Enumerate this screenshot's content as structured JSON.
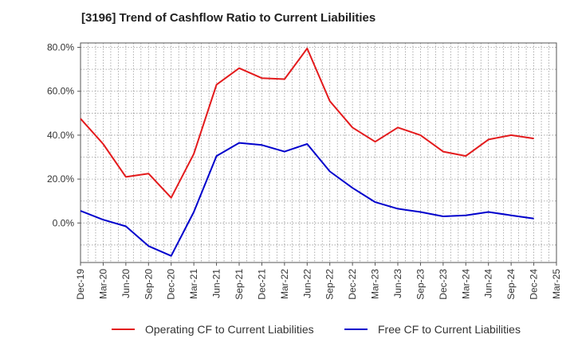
{
  "chart_data": {
    "type": "line",
    "title": "[3196]  Trend of Cashflow Ratio to Current Liabilities",
    "x": [
      "Dec-19",
      "Mar-20",
      "Jun-20",
      "Sep-20",
      "Dec-20",
      "Mar-21",
      "Jun-21",
      "Sep-21",
      "Dec-21",
      "Mar-22",
      "Jun-22",
      "Sep-22",
      "Dec-22",
      "Mar-23",
      "Jun-23",
      "Sep-23",
      "Dec-23",
      "Mar-24",
      "Jun-24",
      "Sep-24",
      "Dec-24",
      "Mar-25"
    ],
    "y_ticks": [
      "80.0%",
      "60.0%",
      "40.0%",
      "20.0%",
      "0.0%"
    ],
    "ylim": [
      -18,
      82
    ],
    "grid": true,
    "legend_position": "bottom",
    "series": [
      {
        "name": "Operating CF to Current Liabilities",
        "color": "#e31a1c",
        "values": [
          47.5,
          36.0,
          21.0,
          22.5,
          11.5,
          31.5,
          63.0,
          70.5,
          66.0,
          65.5,
          79.5,
          55.5,
          43.5,
          37.0,
          43.5,
          40.0,
          32.5,
          30.5,
          38.0,
          40.0,
          38.5,
          null
        ]
      },
      {
        "name": "Free CF to Current Liabilities",
        "color": "#0000cc",
        "values": [
          5.5,
          1.5,
          -1.5,
          -10.5,
          -15.0,
          5.0,
          30.5,
          36.5,
          35.5,
          32.5,
          36.0,
          23.5,
          16.0,
          9.5,
          6.5,
          5.0,
          3.0,
          3.5,
          5.0,
          3.5,
          2.0,
          null
        ]
      }
    ]
  }
}
